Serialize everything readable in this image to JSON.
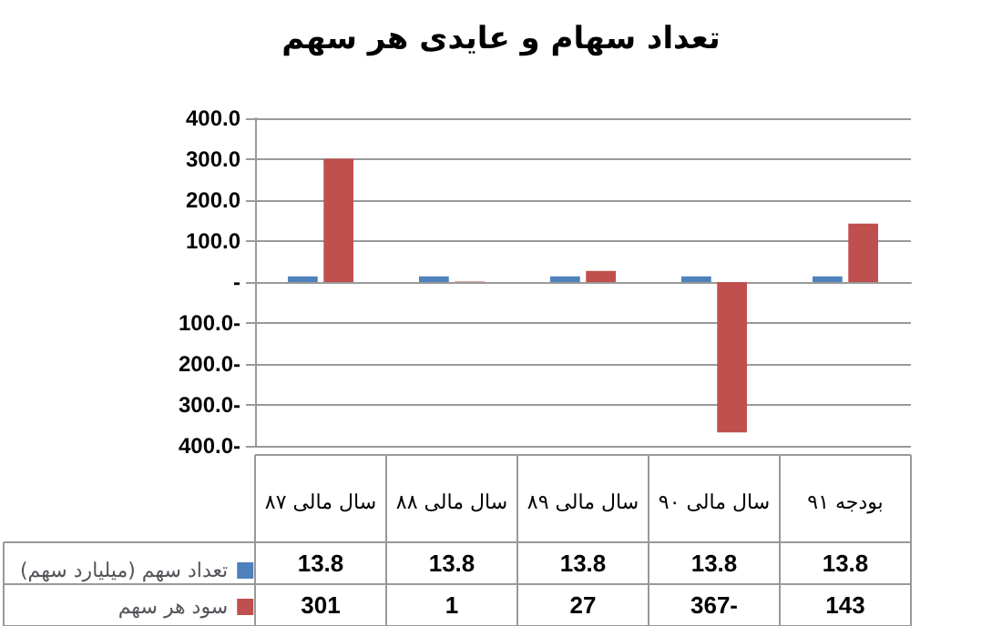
{
  "chart_data": {
    "type": "bar",
    "title": "تعداد سهام و عایدی هر سهم",
    "categories": [
      "سال مالی ۸۷",
      "سال مالی ۸۸",
      "سال مالی ۸۹",
      "سال مالی ۹۰",
      "بودجه ۹۱"
    ],
    "series": [
      {
        "name": "تعداد سهم (میلیارد سهم)",
        "color": "#4f81bd",
        "values": [
          13.8,
          13.8,
          13.8,
          13.8,
          13.8
        ],
        "value_labels": [
          "13.8",
          "13.8",
          "13.8",
          "13.8",
          "13.8"
        ]
      },
      {
        "name": "سود هر سهم",
        "color": "#c0504d",
        "values": [
          301,
          1,
          27,
          -367,
          143
        ],
        "value_labels": [
          "301",
          "1",
          "27",
          "-367",
          "143"
        ]
      }
    ],
    "ylim": [
      -400,
      400
    ],
    "yticks": [
      {
        "value": -400,
        "label": "400.0-"
      },
      {
        "value": -300,
        "label": "300.0-"
      },
      {
        "value": -200,
        "label": "200.0-"
      },
      {
        "value": -100,
        "label": "100.0-"
      },
      {
        "value": 0,
        "label": "-"
      },
      {
        "value": 100,
        "label": "100.0"
      },
      {
        "value": 200,
        "label": "200.0"
      },
      {
        "value": 300,
        "label": "300.0"
      },
      {
        "value": 400,
        "label": "400.0"
      }
    ],
    "grid": "y",
    "legend": "bottom left"
  }
}
